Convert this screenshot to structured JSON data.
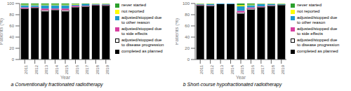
{
  "chart_data": [
    {
      "type": "bar",
      "stacked": true,
      "legend": "right",
      "title": "a Conventionally fractionated radiotherapy",
      "xlabel": "Year",
      "ylabel": "Patients (%)",
      "categories": [
        "2011",
        "2012",
        "2013",
        "2014",
        "2015",
        "2016",
        "2017",
        "2018",
        "2019"
      ],
      "ylim": [
        0,
        100
      ],
      "yticks": [
        0,
        20,
        40,
        60,
        80,
        100
      ],
      "series": [
        {
          "name": "completed as planned",
          "color": "#000000",
          "values": [
            90,
            92,
            86,
            88,
            86,
            93,
            94,
            97,
            96
          ]
        },
        {
          "name": "adjusted/stopped due\nto disease progression",
          "color": "#ffffff",
          "values": [
            1,
            1,
            2,
            1,
            2,
            1,
            1,
            0,
            1
          ]
        },
        {
          "name": "adjusted/stopped due\nto side effects",
          "color": "#d63fa0",
          "values": [
            2,
            1,
            3,
            2,
            3,
            2,
            1,
            1,
            1
          ]
        },
        {
          "name": "adjusted/stopped due\nto other reason",
          "color": "#1f9bcd",
          "values": [
            4,
            3,
            6,
            6,
            6,
            2,
            3,
            1,
            1
          ]
        },
        {
          "name": "not reported",
          "color": "#ffff00",
          "values": [
            1,
            1,
            1,
            1,
            1,
            1,
            0,
            0.5,
            0.5
          ]
        },
        {
          "name": "never started",
          "color": "#2ca02c",
          "values": [
            2,
            2,
            2,
            2,
            2,
            1,
            1,
            0.5,
            0.5
          ]
        }
      ]
    },
    {
      "type": "bar",
      "stacked": true,
      "legend": "right",
      "title": "b Short-course hypofractionated radiotherapy",
      "xlabel": "Year",
      "ylabel": "Patients (%)",
      "categories": [
        "2011",
        "2012",
        "2013",
        "2014",
        "2015",
        "2016",
        "2017",
        "2018",
        "2019"
      ],
      "ylim": [
        0,
        100
      ],
      "yticks": [
        0,
        20,
        40,
        60,
        80,
        100
      ],
      "series": [
        {
          "name": "completed as planned",
          "color": "#000000",
          "values": [
            96,
            95,
            99,
            99,
            82,
            89,
            93,
            95,
            97
          ]
        },
        {
          "name": "adjusted/stopped due\nto disease progression",
          "color": "#ffffff",
          "values": [
            1,
            1,
            0,
            0,
            2,
            2,
            1,
            1,
            1
          ]
        },
        {
          "name": "adjusted/stopped due\nto side effects",
          "color": "#d63fa0",
          "values": [
            1,
            1,
            0,
            0,
            3,
            2,
            1,
            1,
            0
          ]
        },
        {
          "name": "adjusted/stopped due\nto other reason",
          "color": "#1f9bcd",
          "values": [
            1,
            2,
            1,
            1,
            8,
            4,
            4,
            2,
            1
          ]
        },
        {
          "name": "not reported",
          "color": "#ffff00",
          "values": [
            0.5,
            0.5,
            0,
            0,
            2,
            1,
            0.5,
            0.5,
            0.5
          ]
        },
        {
          "name": "never started",
          "color": "#2ca02c",
          "values": [
            0.5,
            0.5,
            0,
            0,
            3,
            2,
            0.5,
            0.5,
            0.5
          ]
        }
      ]
    }
  ]
}
